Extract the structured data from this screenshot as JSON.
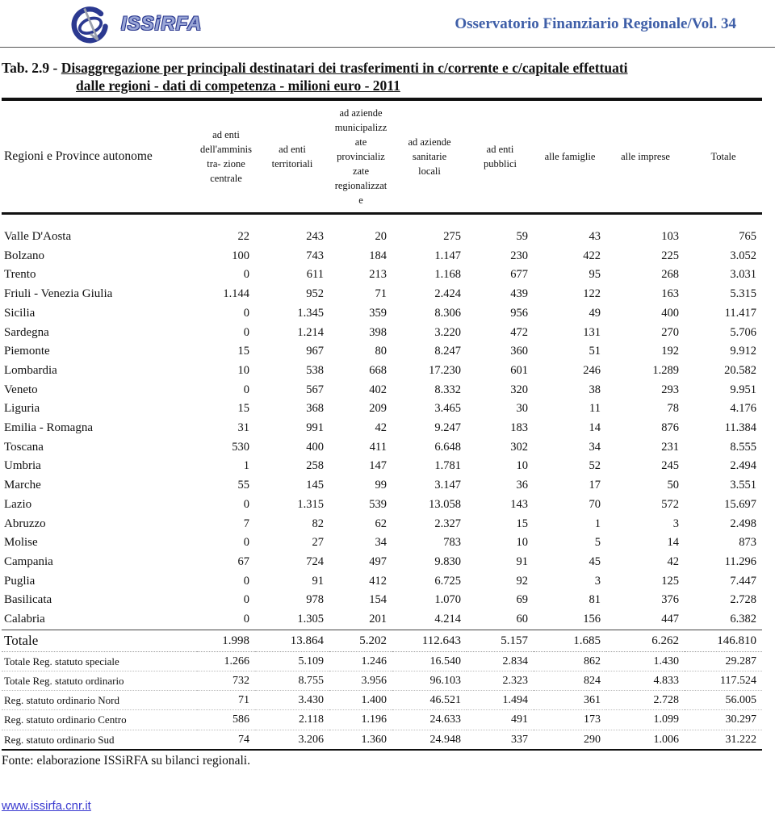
{
  "banner": {
    "logo_text": "ISSiRFA",
    "journal": "Osservatorio Finanziario Regionale/Vol. 34"
  },
  "title": {
    "prefix": "Tab. 2.9 - ",
    "line1": "Disaggregazione per principali destinatari dei trasferimenti in c/corrente e c/capitale effettuati",
    "line2": "dalle regioni - dati di competenza - milioni euro - 2011"
  },
  "table": {
    "columns": [
      "Regioni e Province autonome",
      "ad enti\ndell'amminis\ntra- zione\ncentrale",
      "ad enti\nterritoriali",
      "ad aziende\nmunicipalizz\nate\nprovincializ\nzate\nregionalizzat\ne",
      "ad aziende\nsanitarie\nlocali",
      "ad enti\npubblici",
      "alle famiglie",
      "alle imprese",
      "Totale"
    ],
    "rows": [
      {
        "name": "Valle D'Aosta",
        "style": "region",
        "values": [
          "22",
          "243",
          "20",
          "275",
          "59",
          "43",
          "103",
          "765"
        ]
      },
      {
        "name": "Bolzano",
        "style": "region",
        "values": [
          "100",
          "743",
          "184",
          "1.147",
          "230",
          "422",
          "225",
          "3.052"
        ]
      },
      {
        "name": "Trento",
        "style": "region",
        "values": [
          "0",
          "611",
          "213",
          "1.168",
          "677",
          "95",
          "268",
          "3.031"
        ]
      },
      {
        "name": "Friuli - Venezia Giulia",
        "style": "region",
        "values": [
          "1.144",
          "952",
          "71",
          "2.424",
          "439",
          "122",
          "163",
          "5.315"
        ]
      },
      {
        "name": "Sicilia",
        "style": "region",
        "values": [
          "0",
          "1.345",
          "359",
          "8.306",
          "956",
          "49",
          "400",
          "11.417"
        ]
      },
      {
        "name": "Sardegna",
        "style": "region",
        "values": [
          "0",
          "1.214",
          "398",
          "3.220",
          "472",
          "131",
          "270",
          "5.706"
        ]
      },
      {
        "name": "Piemonte",
        "style": "region",
        "values": [
          "15",
          "967",
          "80",
          "8.247",
          "360",
          "51",
          "192",
          "9.912"
        ]
      },
      {
        "name": "Lombardia",
        "style": "region",
        "values": [
          "10",
          "538",
          "668",
          "17.230",
          "601",
          "246",
          "1.289",
          "20.582"
        ]
      },
      {
        "name": "Veneto",
        "style": "region",
        "values": [
          "0",
          "567",
          "402",
          "8.332",
          "320",
          "38",
          "293",
          "9.951"
        ]
      },
      {
        "name": "Liguria",
        "style": "region",
        "values": [
          "15",
          "368",
          "209",
          "3.465",
          "30",
          "11",
          "78",
          "4.176"
        ]
      },
      {
        "name": "Emilia - Romagna",
        "style": "region",
        "values": [
          "31",
          "991",
          "42",
          "9.247",
          "183",
          "14",
          "876",
          "11.384"
        ]
      },
      {
        "name": "Toscana",
        "style": "region",
        "values": [
          "530",
          "400",
          "411",
          "6.648",
          "302",
          "34",
          "231",
          "8.555"
        ]
      },
      {
        "name": "Umbria",
        "style": "region",
        "values": [
          "1",
          "258",
          "147",
          "1.781",
          "10",
          "52",
          "245",
          "2.494"
        ]
      },
      {
        "name": "Marche",
        "style": "region",
        "values": [
          "55",
          "145",
          "99",
          "3.147",
          "36",
          "17",
          "50",
          "3.551"
        ]
      },
      {
        "name": "Lazio",
        "style": "region",
        "values": [
          "0",
          "1.315",
          "539",
          "13.058",
          "143",
          "70",
          "572",
          "15.697"
        ]
      },
      {
        "name": "Abruzzo",
        "style": "region",
        "values": [
          "7",
          "82",
          "62",
          "2.327",
          "15",
          "1",
          "3",
          "2.498"
        ]
      },
      {
        "name": "Molise",
        "style": "region",
        "values": [
          "0",
          "27",
          "34",
          "783",
          "10",
          "5",
          "14",
          "873"
        ]
      },
      {
        "name": "Campania",
        "style": "region",
        "values": [
          "67",
          "724",
          "497",
          "9.830",
          "91",
          "45",
          "42",
          "11.296"
        ]
      },
      {
        "name": "Puglia",
        "style": "region",
        "values": [
          "0",
          "91",
          "412",
          "6.725",
          "92",
          "3",
          "125",
          "7.447"
        ]
      },
      {
        "name": "Basilicata",
        "style": "region",
        "values": [
          "0",
          "978",
          "154",
          "1.070",
          "69",
          "81",
          "376",
          "2.728"
        ]
      },
      {
        "name": "Calabria",
        "style": "region",
        "values": [
          "0",
          "1.305",
          "201",
          "4.214",
          "60",
          "156",
          "447",
          "6.382"
        ]
      },
      {
        "name": "Totale",
        "style": "grand-total",
        "values": [
          "1.998",
          "13.864",
          "5.202",
          "112.643",
          "5.157",
          "1.685",
          "6.262",
          "146.810"
        ]
      },
      {
        "name": "Totale Reg. statuto speciale",
        "style": "summary",
        "values": [
          "1.266",
          "5.109",
          "1.246",
          "16.540",
          "2.834",
          "862",
          "1.430",
          "29.287"
        ]
      },
      {
        "name": "Totale Reg. statuto ordinario",
        "style": "summary",
        "values": [
          "732",
          "8.755",
          "3.956",
          "96.103",
          "2.323",
          "824",
          "4.833",
          "117.524"
        ]
      },
      {
        "name": "Reg. statuto ordinario Nord",
        "style": "summary",
        "values": [
          "71",
          "3.430",
          "1.400",
          "46.521",
          "1.494",
          "361",
          "2.728",
          "56.005"
        ]
      },
      {
        "name": "Reg. statuto ordinario Centro",
        "style": "summary",
        "values": [
          "586",
          "2.118",
          "1.196",
          "24.633",
          "491",
          "173",
          "1.099",
          "30.297"
        ]
      },
      {
        "name": "Reg. statuto ordinario Sud",
        "style": "summary",
        "values": [
          "74",
          "3.206",
          "1.360",
          "24.948",
          "337",
          "290",
          "1.006",
          "31.222"
        ]
      }
    ]
  },
  "footer": {
    "source": "Fonte: elaborazione ISSiRFA su bilanci regionali.",
    "link": "www.issirfa.cnr.it"
  },
  "colors": {
    "journal_blue": "#3f5fa8",
    "logo_navy": "#2b3990",
    "link_blue": "#3a3ad0",
    "text_black": "#111111"
  }
}
